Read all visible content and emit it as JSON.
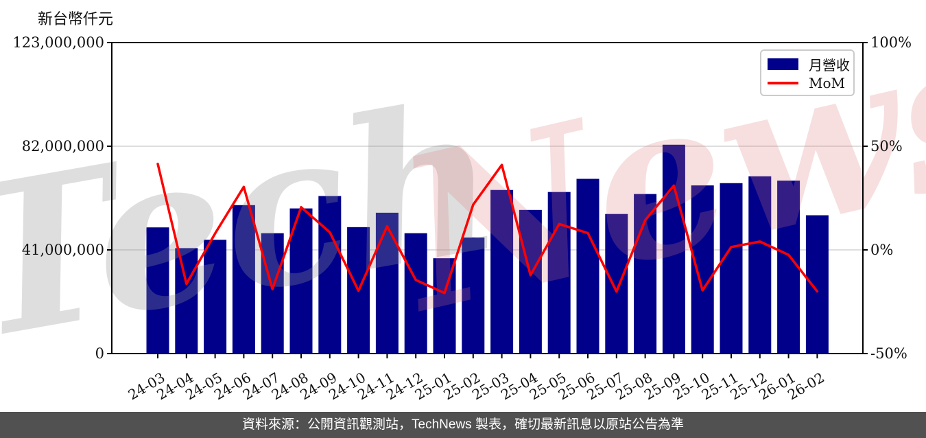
{
  "watermark": {
    "part1": "Tech",
    "part2": "News"
  },
  "legend": {
    "bar_label": "月營收",
    "line_label": "MoM"
  },
  "footer": {
    "text": "資料來源：公開資訊觀測站，TechNews 製表，確切最新訊息以原站公告為準"
  },
  "colors": {
    "bar": "#00008b",
    "line": "#ff0000",
    "grid": "#d3d3d3",
    "axis": "#000000",
    "tick_text": "#111111",
    "footer_bg": "#515151",
    "watermark_gray": "rgba(145,145,145,0.30)",
    "watermark_pink": "rgba(222,120,120,0.24)"
  },
  "chart_data": {
    "type": "bar",
    "subtype": "bar+line combo",
    "ylabel_left": "新台幣仟元",
    "legend_position": "top-right",
    "grid": "horizontal at left ticks 41,000,000 and 82,000,000 (right 0% and 50%)",
    "categories": [
      "24-03",
      "24-04",
      "24-05",
      "24-06",
      "24-07",
      "24-08",
      "24-09",
      "24-10",
      "24-11",
      "24-12",
      "25-01",
      "25-02",
      "25-03",
      "25-04",
      "25-05",
      "25-06",
      "25-07",
      "25-08",
      "25-09",
      "25-10",
      "25-11",
      "25-12",
      "26-01",
      "26-02"
    ],
    "series": [
      {
        "name": "月營收",
        "type": "bar",
        "axis": "left",
        "unit": "新台幣仟元",
        "values": [
          49900000,
          41700000,
          45000000,
          58700000,
          47600000,
          57400000,
          62300000,
          50000000,
          55700000,
          47600000,
          37700000,
          45900000,
          64700000,
          56800000,
          63900000,
          69100000,
          55200000,
          63100000,
          82600000,
          66500000,
          67400000,
          70100000,
          68400000,
          54700000
        ]
      },
      {
        "name": "MoM",
        "type": "line",
        "axis": "right",
        "unit": "%",
        "values": [
          41.5,
          -16.4,
          7.9,
          30.4,
          -18.9,
          20.6,
          8.5,
          -19.7,
          11.4,
          -14.5,
          -20.8,
          21.8,
          41.0,
          -12.2,
          12.5,
          8.1,
          -20.1,
          14.3,
          31.0,
          -19.5,
          1.4,
          4.0,
          -2.4,
          -20.0
        ]
      }
    ],
    "y_left": {
      "min": 0,
      "max": 123000000,
      "ticks": [
        0,
        41000000,
        82000000,
        123000000
      ],
      "tick_labels": [
        "0",
        "41,000,000",
        "82,000,000",
        "123,000,000"
      ],
      "grid_values": [
        41000000,
        82000000
      ]
    },
    "y_right": {
      "min": -50,
      "max": 100,
      "ticks": [
        -50,
        0,
        50,
        100
      ],
      "tick_labels": [
        "-50%",
        "0%",
        "50%",
        "100%"
      ]
    }
  }
}
